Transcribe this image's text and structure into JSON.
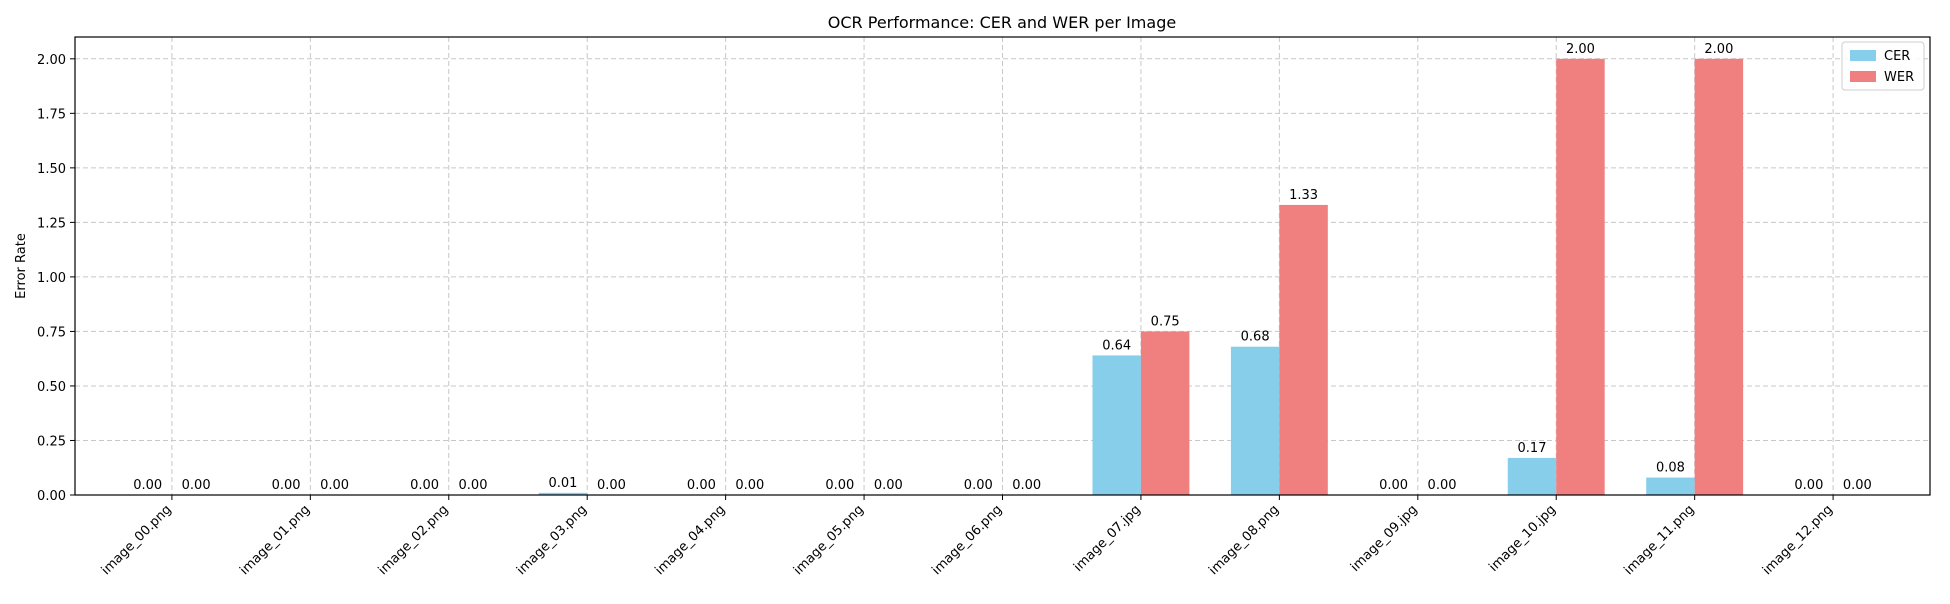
{
  "chart_data": {
    "type": "bar",
    "title": "OCR Performance: CER and WER per Image",
    "xlabel": "",
    "ylabel": "Error Rate",
    "categories": [
      "image_00.png",
      "image_01.png",
      "image_02.png",
      "image_03.png",
      "image_04.png",
      "image_05.png",
      "image_06.png",
      "image_07.jpg",
      "image_08.png",
      "image_09.jpg",
      "image_10.jpg",
      "image_11.png",
      "image_12.png"
    ],
    "series": [
      {
        "name": "CER",
        "color": "#87ceeb",
        "values": [
          0.0,
          0.0,
          0.0,
          0.01,
          0.0,
          0.0,
          0.0,
          0.64,
          0.68,
          0.0,
          0.17,
          0.08,
          0.0
        ]
      },
      {
        "name": "WER",
        "color": "#f08080",
        "values": [
          0.0,
          0.0,
          0.0,
          0.0,
          0.0,
          0.0,
          0.0,
          0.75,
          1.33,
          0.0,
          2.0,
          2.0,
          0.0
        ]
      }
    ],
    "yticks": [
      "0.00",
      "0.25",
      "0.50",
      "0.75",
      "1.00",
      "1.25",
      "1.50",
      "1.75",
      "2.00"
    ],
    "ylim": [
      0,
      2.1
    ],
    "grid": true,
    "legend_position": "top-right"
  }
}
